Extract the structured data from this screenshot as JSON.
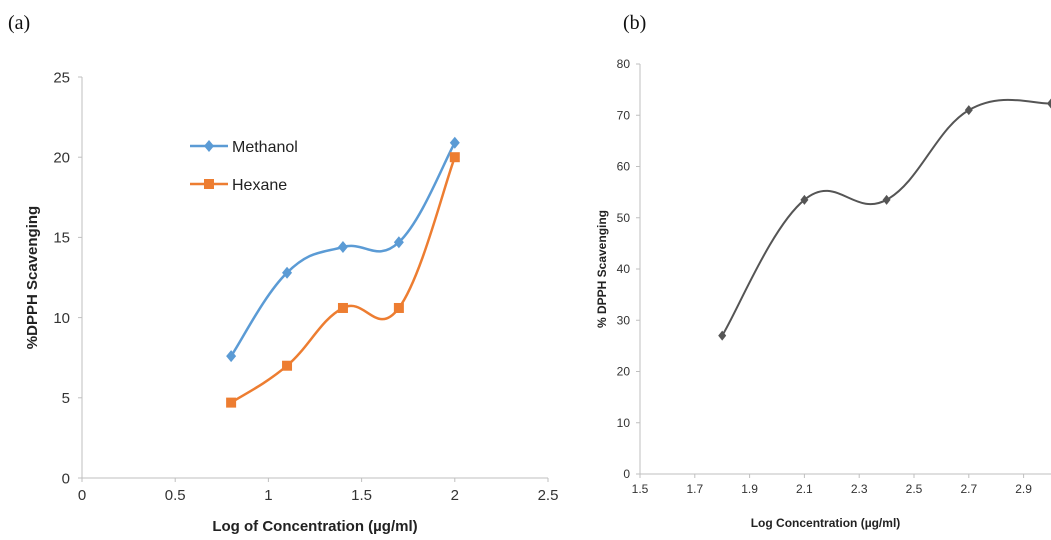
{
  "panels": {
    "a_label": "(a)",
    "b_label": "(b)"
  },
  "chart_data": [
    {
      "type": "line",
      "x": [
        0.8,
        1.1,
        1.4,
        1.7,
        2.0
      ],
      "series": [
        {
          "name": "Methanol",
          "values": [
            7.6,
            12.8,
            14.4,
            14.7,
            20.9
          ],
          "color": "#5b9bd5",
          "marker": "diamond"
        },
        {
          "name": "Hexane",
          "values": [
            4.7,
            7.0,
            10.6,
            10.6,
            20.0
          ],
          "color": "#ed7d31",
          "marker": "square"
        }
      ],
      "xlabel": "Log of Concentration (µg/ml)",
      "ylabel": "%DPPH Scavenging",
      "xlim": [
        0,
        2.5
      ],
      "ylim": [
        0,
        25
      ],
      "xticks": [
        "0",
        "0.5",
        "1",
        "1.5",
        "2",
        "2.5"
      ],
      "yticks": [
        "0",
        "5",
        "10",
        "15",
        "20",
        "25"
      ],
      "smooth": true,
      "grid": false,
      "legend": "upper-middle"
    },
    {
      "type": "line",
      "x": [
        1.8,
        2.1,
        2.4,
        2.7,
        3.0
      ],
      "series": [
        {
          "values": [
            27,
            53.5,
            53.5,
            71,
            72.3
          ],
          "color": "#555555",
          "marker": "diamond"
        }
      ],
      "xlabel": "Log Concentration (µg/ml)",
      "ylabel": "% DPPH Scavenging",
      "xlim": [
        1.5,
        3.0
      ],
      "ylim": [
        0,
        80
      ],
      "xticks": [
        "1.5",
        "1.7",
        "1.9",
        "2.1",
        "2.3",
        "2.5",
        "2.7",
        "2.9"
      ],
      "yticks": [
        "0",
        "10",
        "20",
        "30",
        "40",
        "50",
        "60",
        "70",
        "80"
      ],
      "smooth": true,
      "grid": false
    }
  ]
}
